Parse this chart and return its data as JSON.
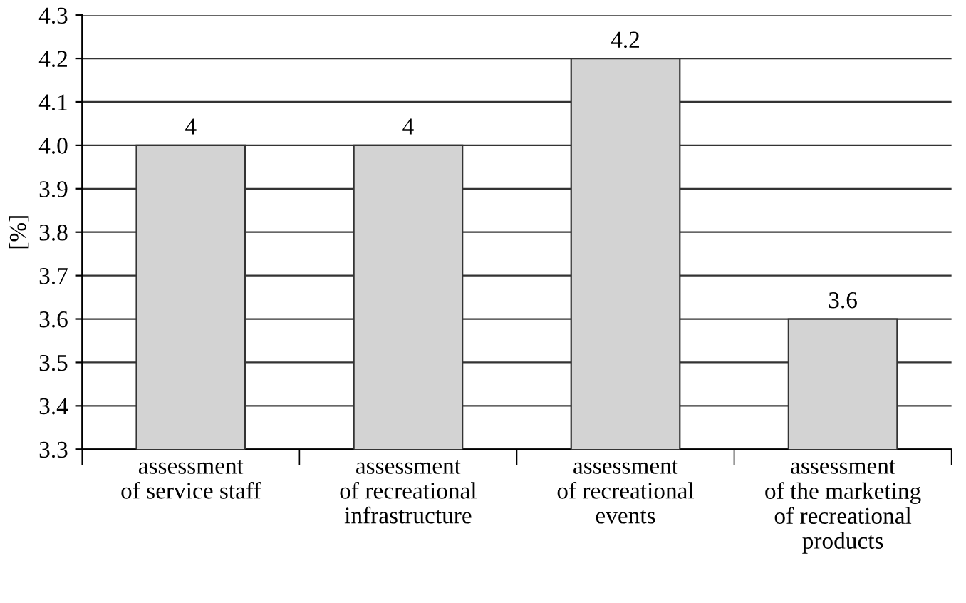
{
  "chart_data": {
    "type": "bar",
    "ylabel": "[%]",
    "categories": [
      "assessment\nof service staff",
      "assessment\nof recreational\ninfrastructure",
      "assessment\nof recreational\nevents",
      "assessment\nof the marketing\nof recreational\nproducts"
    ],
    "values": [
      4,
      4,
      4.2,
      3.6
    ],
    "color": "#d3d3d3",
    "ylim": [
      3.3,
      4.3
    ],
    "yticks": [
      3.3,
      3.4,
      3.5,
      3.6,
      3.7,
      3.8,
      3.9,
      {
        "value": 4.0,
        "label": "4.0"
      },
      4.1,
      4.2,
      4.3
    ],
    "grid": "y",
    "data_labels": true
  }
}
